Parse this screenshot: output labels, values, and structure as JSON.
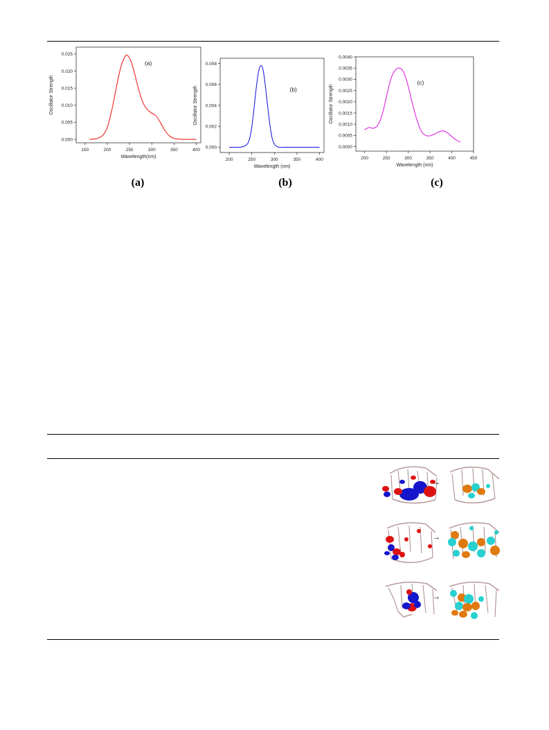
{
  "figure": {
    "subcaptions": [
      "(a)",
      "(b)",
      "(c)"
    ]
  },
  "chart_data": [
    {
      "type": "line",
      "panel_label": "(a)",
      "xlabel": "Wavelength(nm)",
      "ylabel": "Oscillator Strength",
      "xlim": [
        130,
        410
      ],
      "ylim": [
        -0.001,
        0.027
      ],
      "xticks": [
        150,
        200,
        250,
        300,
        350,
        400
      ],
      "yticks": [
        0.0,
        0.005,
        0.01,
        0.015,
        0.02,
        0.025
      ],
      "ytick_labels": [
        "0.000",
        "0.005",
        "0.010",
        "0.015",
        "0.020",
        "0.025"
      ],
      "color": "#ee2222",
      "x": [
        160,
        170,
        180,
        190,
        200,
        210,
        220,
        230,
        240,
        245,
        250,
        255,
        260,
        270,
        280,
        290,
        300,
        310,
        320,
        330,
        340,
        350,
        360,
        370,
        380,
        390,
        400
      ],
      "y": [
        0.0,
        0.0001,
        0.0004,
        0.0012,
        0.0035,
        0.0085,
        0.015,
        0.021,
        0.0243,
        0.0246,
        0.0238,
        0.0222,
        0.02,
        0.0148,
        0.0108,
        0.0087,
        0.0077,
        0.0068,
        0.0048,
        0.0025,
        0.001,
        0.0003,
        0.0001,
        0.0,
        0.0,
        0.0,
        0.0
      ]
    },
    {
      "type": "line",
      "panel_label": "(b)",
      "xlabel": "Wavelength (nm)",
      "ylabel": "Oscillator Strength",
      "xlim": [
        180,
        410
      ],
      "ylim": [
        -0.0005,
        0.0085
      ],
      "xticks": [
        200,
        250,
        300,
        350,
        400
      ],
      "yticks": [
        0.0,
        0.002,
        0.004,
        0.006,
        0.008
      ],
      "ytick_labels": [
        "0.000",
        "0.002",
        "0.004",
        "0.006",
        "0.008"
      ],
      "color": "#2222dd",
      "x": [
        200,
        220,
        230,
        240,
        245,
        250,
        255,
        260,
        265,
        270,
        275,
        280,
        285,
        290,
        295,
        300,
        305,
        310,
        320,
        330,
        350,
        380,
        400
      ],
      "y": [
        0.0,
        0.0,
        5e-05,
        0.0003,
        0.0008,
        0.0019,
        0.0037,
        0.0057,
        0.0072,
        0.0078,
        0.0074,
        0.0059,
        0.004,
        0.0022,
        0.0009,
        0.0003,
        0.0001,
        0.0,
        0.0,
        0.0,
        0.0,
        0.0,
        0.0
      ]
    },
    {
      "type": "line",
      "panel_label": "(c)",
      "xlabel": "Wavelength (nm)",
      "ylabel": "Oscillator Strength",
      "xlim": [
        180,
        450
      ],
      "ylim": [
        -0.0002,
        0.004
      ],
      "xticks": [
        200,
        250,
        300,
        350,
        400,
        450
      ],
      "yticks": [
        0.0,
        0.0005,
        0.001,
        0.0015,
        0.002,
        0.0025,
        0.003,
        0.0035,
        0.004
      ],
      "ytick_labels": [
        "0.0000",
        "0.0005",
        "0.0010",
        "0.0015",
        "0.0020",
        "0.0025",
        "0.0030",
        "0.0035",
        "0.0040"
      ],
      "color": "#dd22dd",
      "x": [
        200,
        210,
        220,
        230,
        240,
        250,
        260,
        270,
        280,
        290,
        300,
        310,
        320,
        330,
        340,
        350,
        360,
        370,
        380,
        390,
        400,
        410,
        420
      ],
      "y": [
        0.00075,
        0.00085,
        0.00082,
        0.00095,
        0.0014,
        0.0022,
        0.003,
        0.0034,
        0.0035,
        0.0033,
        0.0027,
        0.0019,
        0.0012,
        0.0007,
        0.0005,
        0.00048,
        0.00055,
        0.00065,
        0.0007,
        0.00062,
        0.00045,
        0.0003,
        0.0002
      ]
    }
  ],
  "mo_images": [
    {
      "from": "HOMO-type orbital (red/blue lobes)",
      "arrow": "→",
      "to": "LUMO-type orbital (orange/cyan lobes)"
    },
    {
      "from": "HOMO-type orbital (red/blue lobes)",
      "arrow": "→",
      "to": "LUMO-type orbital (orange/cyan lobes)"
    },
    {
      "from": "HOMO-type orbital (red/blue lobes)",
      "arrow": "→",
      "to": "LUMO-type orbital (orange/cyan lobes)"
    }
  ],
  "colors": {
    "mo_positive_a": "#dd1111",
    "mo_negative_a": "#1515cc",
    "mo_positive_b": "#e07a10",
    "mo_negative_b": "#28d0d0",
    "skeleton": "#b89a9a"
  }
}
